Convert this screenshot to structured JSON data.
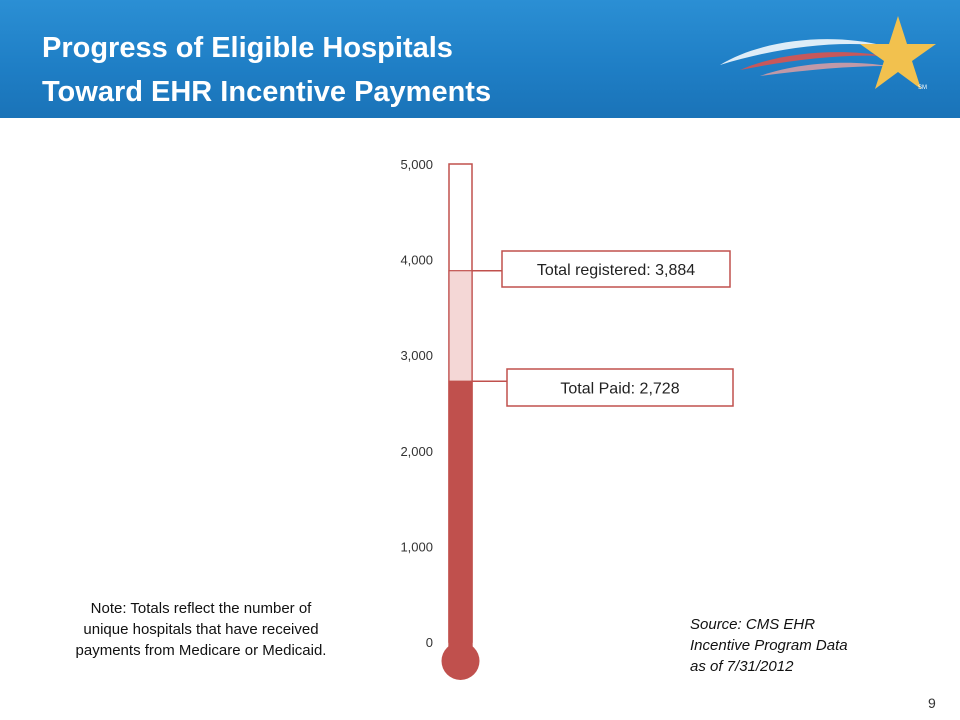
{
  "header": {
    "title_line1": "Progress of Eligible Hospitals",
    "title_line2": "Toward EHR Incentive Payments",
    "logo_icon": "star-swoosh-logo-icon",
    "logo_mark": "SM"
  },
  "chart_data": {
    "type": "thermometer",
    "ylim": [
      0,
      5000
    ],
    "ticks": [
      "0",
      "1,000",
      "2,000",
      "3,000",
      "4,000",
      "5,000"
    ],
    "tick_values": [
      0,
      1000,
      2000,
      3000,
      4000,
      5000
    ],
    "series": [
      {
        "name": "Total registered",
        "value": 3884,
        "label": "Total registered: 3,884",
        "color": "#f4d7d6"
      },
      {
        "name": "Total Paid",
        "value": 2728,
        "label": "Total Paid: 2,728",
        "color": "#c0504d"
      }
    ],
    "outline_color": "#c0504d"
  },
  "note": "Note: Totals reflect the number of unique hospitals that have received payments from Medicare or Medicaid.",
  "source": {
    "line1": "Source: CMS EHR",
    "line2": "Incentive Program Data",
    "line3": "as of 7/31/2012"
  },
  "page_number": "9"
}
